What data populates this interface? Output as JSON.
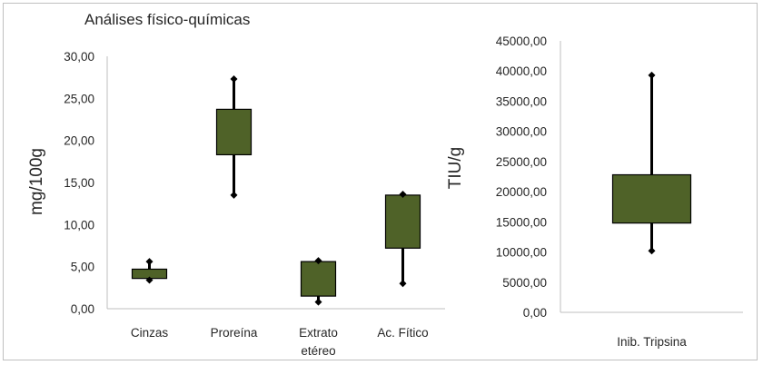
{
  "chart_data": [
    {
      "type": "boxplot",
      "title": "Análises físico-químicas",
      "ylabel": "mg/100g",
      "ylim": [
        0,
        30
      ],
      "yticks": [
        "0,00",
        "5,00",
        "10,00",
        "15,00",
        "20,00",
        "25,00",
        "30,00"
      ],
      "ytick_values": [
        0,
        5,
        10,
        15,
        20,
        25,
        30
      ],
      "categories": [
        {
          "lines": [
            "Cinzas"
          ]
        },
        {
          "lines": [
            "Proreína"
          ]
        },
        {
          "lines": [
            "Extrato",
            "etéreo"
          ]
        },
        {
          "lines": [
            "Ac. Fítico"
          ]
        }
      ],
      "boxes": [
        {
          "min": 3.4,
          "q1": 3.6,
          "q3": 4.7,
          "max": 5.6
        },
        {
          "min": 13.5,
          "q1": 18.3,
          "q3": 23.7,
          "max": 27.3
        },
        {
          "min": 0.8,
          "q1": 1.5,
          "q3": 5.6,
          "max": 5.7
        },
        {
          "min": 3.0,
          "q1": 7.2,
          "q3": 13.5,
          "max": 13.6
        }
      ],
      "box_color": "#4f6228",
      "grid": false
    },
    {
      "type": "boxplot",
      "title": "",
      "ylabel": "TIU/g",
      "ylim": [
        0,
        45000
      ],
      "yticks": [
        "0,00",
        "5000,00",
        "10000,00",
        "15000,00",
        "20000,00",
        "25000,00",
        "30000,00",
        "35000,00",
        "40000,00",
        "45000,00"
      ],
      "ytick_values": [
        0,
        5000,
        10000,
        15000,
        20000,
        25000,
        30000,
        35000,
        40000,
        45000
      ],
      "categories": [
        {
          "lines": [
            "Inib. Tripsina"
          ]
        }
      ],
      "boxes": [
        {
          "min": 10200,
          "q1": 14800,
          "q3": 22800,
          "max": 39300
        }
      ],
      "box_color": "#4f6228",
      "grid": false
    }
  ]
}
